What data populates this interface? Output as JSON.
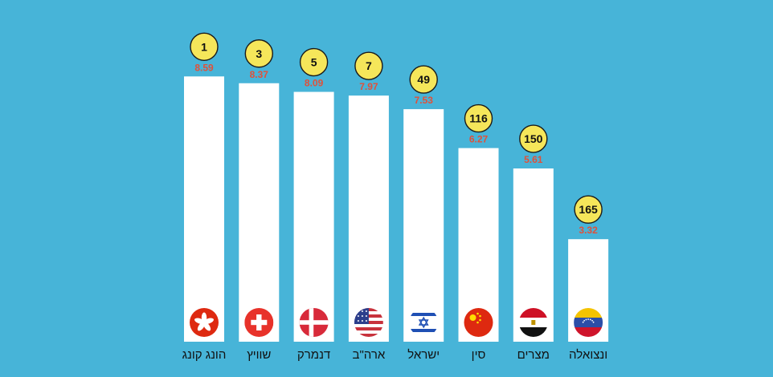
{
  "background_color": "#47b4d8",
  "bar_color": "#ffffff",
  "value_color": "#e0513a",
  "rank_badge_color": "#f5e65a",
  "chart_data": {
    "type": "bar",
    "title": "",
    "xlabel": "",
    "ylabel": "",
    "ylim": [
      0,
      9.5
    ],
    "grid": false,
    "categories": [
      "הונג קונג",
      "שוויץ",
      "דנמרק",
      "ארה\"ב",
      "ישראל",
      "סין",
      "מצרים",
      "ונצואלה"
    ],
    "values": [
      8.59,
      8.37,
      8.09,
      7.97,
      7.53,
      6.27,
      5.61,
      3.32
    ],
    "value_labels": [
      "8.59",
      "8.37",
      "8.09",
      "7.97",
      "7.53",
      "6.27",
      "5.61",
      "3.32"
    ],
    "ranks": [
      "1",
      "3",
      "5",
      "7",
      "49",
      "116",
      "150",
      "165"
    ],
    "flags": [
      "hong-kong-flag-icon",
      "switzerland-flag-icon",
      "denmark-flag-icon",
      "usa-flag-icon",
      "israel-flag-icon",
      "china-flag-icon",
      "egypt-flag-icon",
      "venezuela-flag-icon"
    ]
  }
}
